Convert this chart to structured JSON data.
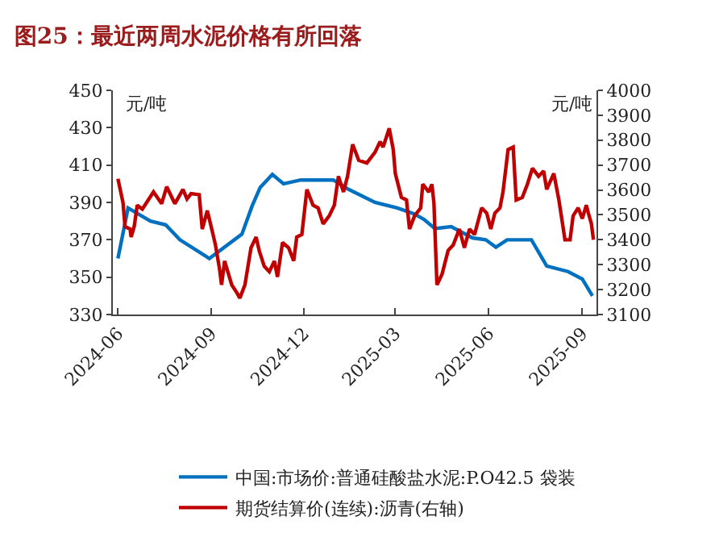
{
  "chart_data": {
    "type": "line",
    "title": "图25：最近两周水泥价格有所回落",
    "ylabel": "元/吨",
    "y2label": "元/吨",
    "xlim": [
      "2024-05-27",
      "2025-09-15"
    ],
    "xticks": [
      "2024-06",
      "2024-09",
      "2024-12",
      "2025-03",
      "2025-06",
      "2025-09"
    ],
    "ylim": [
      330,
      450
    ],
    "yticks": [
      330,
      350,
      370,
      390,
      410,
      430,
      450
    ],
    "y2lim": [
      3100,
      4000
    ],
    "y2ticks": [
      3100,
      3200,
      3300,
      3400,
      3500,
      3600,
      3700,
      3800,
      3900,
      4000
    ],
    "legend": "bottom",
    "marker": "none",
    "line_style": "solid",
    "series": [
      {
        "name": "中国:市场价:普通硅酸盐水泥:P.O42.5 袋装",
        "color": "#0070c0",
        "x": [
          "2024-06-01",
          "2024-06-11",
          "2024-07-03",
          "2024-07-18",
          "2024-08-01",
          "2024-08-30",
          "2024-10-01",
          "2024-10-11",
          "2024-10-19",
          "2024-10-31",
          "2024-11-11",
          "2024-11-28",
          "2024-12-30",
          "2025-01-14",
          "2025-02-09",
          "2025-03-03",
          "2025-03-19",
          "2025-03-29",
          "2025-04-09",
          "2025-04-25",
          "2025-05-16",
          "2025-05-29",
          "2025-06-08",
          "2025-06-19",
          "2025-07-13",
          "2025-07-28",
          "2025-08-18",
          "2025-09-01",
          "2025-09-11"
        ],
        "values": [
          360,
          387,
          380,
          378,
          370,
          360,
          373,
          388,
          398,
          405,
          400,
          402,
          402,
          397,
          390,
          387,
          384,
          381,
          376,
          377,
          371,
          370,
          366,
          370,
          370,
          356,
          353,
          349,
          340
        ]
      },
      {
        "name": "期货结算价(连续):沥青(右轴)",
        "color": "#c00000",
        "axis": "y2",
        "x": [
          "2024-06-01",
          "2024-06-06",
          "2024-06-08",
          "2024-06-13",
          "2024-06-14",
          "2024-06-17",
          "2024-06-20",
          "2024-06-25",
          "2024-07-06",
          "2024-07-14",
          "2024-07-19",
          "2024-07-27",
          "2024-08-04",
          "2024-08-08",
          "2024-08-12",
          "2024-08-20",
          "2024-08-23",
          "2024-08-28",
          "2024-09-02",
          "2024-09-05",
          "2024-09-09",
          "2024-09-11",
          "2024-09-14",
          "2024-09-21",
          "2024-09-26",
          "2024-09-29",
          "2024-10-04",
          "2024-10-10",
          "2024-10-15",
          "2024-10-18",
          "2024-10-23",
          "2024-10-28",
          "2024-11-02",
          "2024-11-05",
          "2024-11-10",
          "2024-11-16",
          "2024-11-21",
          "2024-11-24",
          "2024-11-29",
          "2024-12-04",
          "2024-12-10",
          "2024-12-15",
          "2024-12-20",
          "2024-12-26",
          "2024-12-31",
          "2025-01-04",
          "2025-01-09",
          "2025-01-13",
          "2025-01-18",
          "2025-01-24",
          "2025-02-01",
          "2025-02-09",
          "2025-02-14",
          "2025-02-17",
          "2025-02-23",
          "2025-02-27",
          "2025-03-01",
          "2025-03-07",
          "2025-03-12",
          "2025-03-15",
          "2025-03-20",
          "2025-03-26",
          "2025-03-28",
          "2025-04-03",
          "2025-04-06",
          "2025-04-08",
          "2025-04-11",
          "2025-04-16",
          "2025-04-22",
          "2025-04-27",
          "2025-05-03",
          "2025-05-08",
          "2025-05-13",
          "2025-05-18",
          "2025-05-25",
          "2025-05-30",
          "2025-06-03",
          "2025-06-07",
          "2025-06-12",
          "2025-06-15",
          "2025-06-20",
          "2025-06-25",
          "2025-06-28",
          "2025-07-04",
          "2025-07-09",
          "2025-07-14",
          "2025-07-20",
          "2025-07-25",
          "2025-07-28",
          "2025-08-04",
          "2025-08-09",
          "2025-08-15",
          "2025-08-20",
          "2025-08-23",
          "2025-08-28",
          "2025-09-01",
          "2025-09-05",
          "2025-09-07",
          "2025-09-10",
          "2025-09-12"
        ],
        "values": [
          3645,
          3549,
          3453,
          3443,
          3411,
          3453,
          3539,
          3523,
          3592,
          3545,
          3613,
          3545,
          3602,
          3564,
          3585,
          3581,
          3443,
          3517,
          3432,
          3379,
          3283,
          3219,
          3315,
          3219,
          3188,
          3166,
          3219,
          3368,
          3411,
          3357,
          3294,
          3272,
          3315,
          3251,
          3389,
          3368,
          3315,
          3411,
          3421,
          3602,
          3539,
          3528,
          3464,
          3496,
          3539,
          3655,
          3592,
          3655,
          3783,
          3719,
          3708,
          3751,
          3794,
          3772,
          3847,
          3762,
          3666,
          3570,
          3560,
          3443,
          3496,
          3528,
          3623,
          3592,
          3623,
          3549,
          3219,
          3262,
          3357,
          3379,
          3443,
          3368,
          3443,
          3421,
          3528,
          3507,
          3443,
          3507,
          3528,
          3592,
          3762,
          3772,
          3560,
          3570,
          3623,
          3687,
          3655,
          3676,
          3602,
          3666,
          3560,
          3400,
          3400,
          3496,
          3528,
          3485,
          3539,
          3507,
          3464,
          3400
        ]
      }
    ]
  }
}
